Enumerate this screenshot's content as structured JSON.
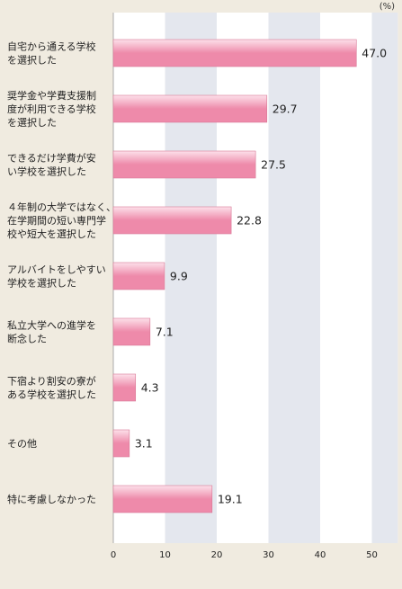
{
  "unit": "(%)",
  "colors": {
    "bar": "#ee8aaa",
    "bar_light": "#fde1ea",
    "band": "#e4e7ee",
    "panel": "#ffffff",
    "background": "#f0ebe0"
  },
  "chart_data": {
    "type": "bar",
    "orientation": "horizontal",
    "categories": [
      [
        "自宅から通える学校",
        "を選択した"
      ],
      [
        "奨学金や学費支援制",
        "度が利用できる学校",
        "を選択した"
      ],
      [
        "できるだけ学費が安",
        "い学校を選択した"
      ],
      [
        "４年制の大学ではなく、",
        "在学期間の短い専門学",
        "校や短大を選択した"
      ],
      [
        "アルバイトをしやすい",
        "学校を選択した"
      ],
      [
        "私立大学への進学を",
        "断念した"
      ],
      [
        "下宿より割安の寮が",
        "ある学校を選択した"
      ],
      [
        "その他"
      ],
      [
        "特に考慮しなかった"
      ]
    ],
    "values": [
      47.0,
      29.7,
      27.5,
      22.8,
      9.9,
      7.1,
      4.3,
      3.1,
      19.1
    ],
    "value_labels": [
      "47.0",
      "29.7",
      "27.5",
      "22.8",
      "9.9",
      "7.1",
      "4.3",
      "3.1",
      "19.1"
    ],
    "xlim": [
      0,
      55
    ],
    "ticks": [
      0,
      10,
      20,
      30,
      40,
      50
    ],
    "tick_labels": [
      "0",
      "10",
      "20",
      "30",
      "40",
      "50"
    ],
    "grid": "alternating vertical bands"
  }
}
